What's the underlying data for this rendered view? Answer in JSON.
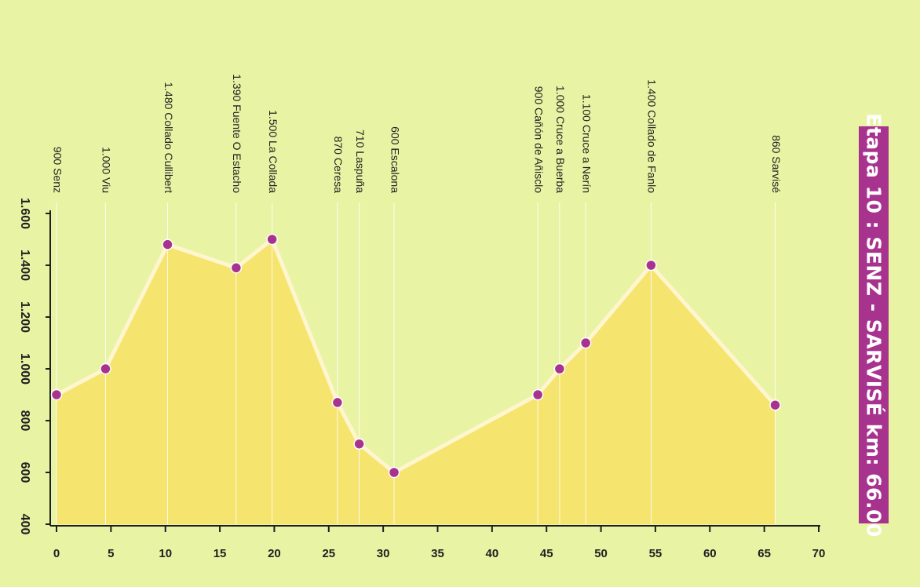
{
  "title": "Etapa 10 : SENZ - SARVISÉ  km: 66.00",
  "colors": {
    "background": "#e9f3a4",
    "area": "#f5e46e",
    "line": "#fff6cf",
    "marker": "#a8338f",
    "title_bg": "#a8338f",
    "axis": "#1f1f1f"
  },
  "chart_data": {
    "type": "area",
    "title": "Etapa 10 : SENZ - SARVISÉ  km: 66.00",
    "xlabel": "",
    "ylabel": "",
    "xlim": [
      0,
      70
    ],
    "ylim": [
      400,
      1600
    ],
    "xticks": [
      0,
      5,
      10,
      15,
      20,
      25,
      30,
      35,
      40,
      45,
      50,
      55,
      60,
      65,
      70
    ],
    "yticks": [
      400,
      600,
      800,
      1000,
      1200,
      1400,
      1600
    ],
    "ytick_labels": [
      "400",
      "600",
      "800",
      "1.000",
      "1.200",
      "1.400",
      "1.600"
    ],
    "grid": false,
    "points": [
      {
        "km": 0,
        "alt": 900,
        "label": "900 Senz"
      },
      {
        "km": 4.5,
        "alt": 1000,
        "label": "1.000 Viu"
      },
      {
        "km": 10.2,
        "alt": 1480,
        "label": "1.480 Collado Cullibert"
      },
      {
        "km": 16.5,
        "alt": 1390,
        "label": "1.390 Fuente O Estacho"
      },
      {
        "km": 19.8,
        "alt": 1500,
        "label": "1.500 La Collada"
      },
      {
        "km": 25.8,
        "alt": 870,
        "label": "870 Ceresa"
      },
      {
        "km": 27.8,
        "alt": 710,
        "label": "710 Laspuña"
      },
      {
        "km": 31,
        "alt": 600,
        "label": "600 Escalona"
      },
      {
        "km": 44.2,
        "alt": 900,
        "label": "900 Cañón de Añisclo"
      },
      {
        "km": 46.2,
        "alt": 1000,
        "label": "1.000 Cruce a Buerba"
      },
      {
        "km": 48.6,
        "alt": 1100,
        "label": "1.100 Cruce a Nerín"
      },
      {
        "km": 54.6,
        "alt": 1400,
        "label": "1.400 Collado de Fanlo"
      },
      {
        "km": 66,
        "alt": 860,
        "label": "860 Sarvisé"
      }
    ]
  }
}
